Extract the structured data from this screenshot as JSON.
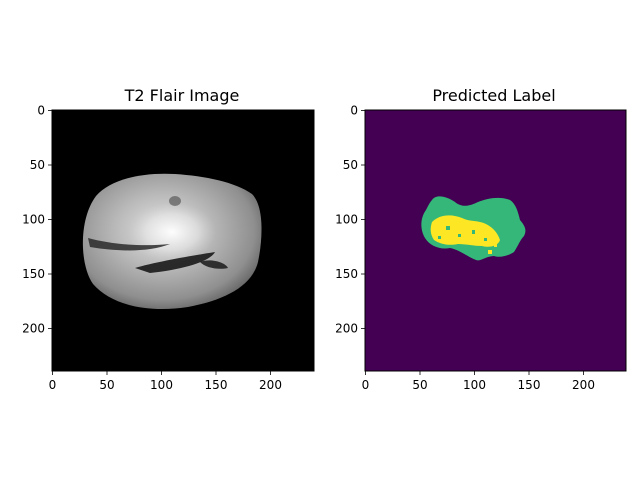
{
  "panels": [
    {
      "title": "T2 Flair Image",
      "x_ticks": [
        "0",
        "50",
        "100",
        "150",
        "200"
      ],
      "y_ticks": [
        "0",
        "50",
        "100",
        "150",
        "200"
      ],
      "background_color": "#000000"
    },
    {
      "title": "Predicted Label",
      "x_ticks": [
        "0",
        "50",
        "100",
        "150",
        "200"
      ],
      "y_ticks": [
        "0",
        "50",
        "100",
        "150",
        "200"
      ],
      "background_color": "#440154",
      "label_colors": {
        "edema": "#35b779",
        "core": "#fde725"
      }
    }
  ]
}
